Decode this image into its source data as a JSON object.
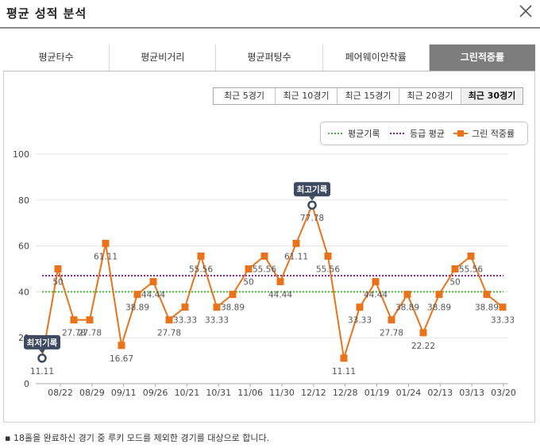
{
  "window": {
    "title": "평균 성적 분석",
    "close_icon": "close-icon"
  },
  "tabs": [
    {
      "label": "평균타수",
      "active": false
    },
    {
      "label": "평균비거리",
      "active": false
    },
    {
      "label": "평균퍼팅수",
      "active": false
    },
    {
      "label": "페어웨이안착률",
      "active": false
    },
    {
      "label": "그린적중률",
      "active": true
    }
  ],
  "periods": [
    {
      "label": "최근 5경기",
      "active": false
    },
    {
      "label": "최근 10경기",
      "active": false
    },
    {
      "label": "최근 15경기",
      "active": false
    },
    {
      "label": "최근 20경기",
      "active": false
    },
    {
      "label": "최근 30경기",
      "active": true
    }
  ],
  "legend": {
    "avg": "평균기록",
    "grade": "등급 평균",
    "series": "그린 적중률"
  },
  "colors": {
    "series": "#e8731a",
    "avg": "#44bb33",
    "grade": "#8a1e8a",
    "marker_badge": "#3d4a5f"
  },
  "chart_data": {
    "type": "line",
    "ylim": [
      0,
      100
    ],
    "yticks": [
      0,
      20,
      40,
      60,
      80,
      100
    ],
    "xtick_labels": [
      "08/22",
      "08/29",
      "09/11",
      "09/26",
      "10/21",
      "10/31",
      "11/06",
      "11/30",
      "12/12",
      "12/28",
      "01/19",
      "01/24",
      "02/13",
      "03/13",
      "03/20"
    ],
    "values": [
      11.11,
      50,
      27.78,
      27.78,
      61.11,
      16.67,
      38.89,
      44.44,
      27.78,
      33.33,
      55.56,
      33.33,
      38.89,
      50,
      55.56,
      44.44,
      61.11,
      77.78,
      55.56,
      11.11,
      33.33,
      44.44,
      27.78,
      38.89,
      22.22,
      38.89,
      50,
      55.56,
      38.89,
      33.33
    ],
    "point_labels": [
      "11.11",
      "50",
      "27.78",
      "27.78",
      "61.11",
      "16.67",
      "38.89",
      "44.44",
      "27.78",
      "33.33",
      "55.56",
      "33.33",
      "38.89",
      "50",
      "55.56",
      "44.44",
      "61.11",
      "77.78",
      "55.56",
      "11.11",
      "33.33",
      "44.44",
      "27.78",
      "38.89",
      "22.22",
      "38.89",
      "50",
      "55.56",
      "38.89",
      "33.33"
    ],
    "avg_line": 40,
    "grade_line": 47,
    "min_index": 0,
    "max_index": 17,
    "min_badge": "최저기록",
    "max_badge": "최고기록"
  },
  "footnote": "18홀을 완료하신 경기 중 루키 모드를 제외한 경기를 대상으로 합니다."
}
